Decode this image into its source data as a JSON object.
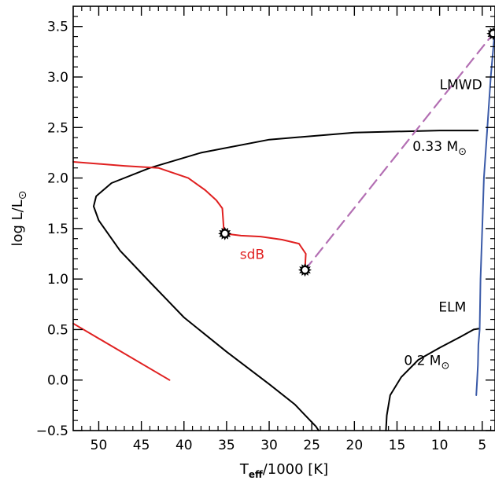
{
  "chart_data": {
    "type": "line",
    "title": "",
    "xlabel": {
      "main": "T",
      "sub": "eff",
      "rest": "/1000 [K]"
    },
    "ylabel": {
      "main": "log L/L",
      "symbol": "⊙"
    },
    "xlim": [
      53,
      3.5
    ],
    "ylim": [
      -0.5,
      3.7
    ],
    "x_reversed": true,
    "grid": false,
    "legend": "none",
    "x_ticks": [
      50,
      45,
      40,
      35,
      30,
      25,
      20,
      15,
      10,
      5
    ],
    "x_tick_labels": [
      "50",
      "45",
      "40",
      "35",
      "30",
      "25",
      "20",
      "15",
      "10",
      "5"
    ],
    "y_ticks": [
      -0.5,
      0.0,
      0.5,
      1.0,
      1.5,
      2.0,
      2.5,
      3.0,
      3.5
    ],
    "y_tick_labels": [
      "−0.5",
      "0.0",
      "0.5",
      "1.0",
      "1.5",
      "2.0",
      "2.5",
      "3.0",
      "3.5"
    ],
    "series": [
      {
        "color": "#000000",
        "style": "solid",
        "points": [
          [
            5.5,
            2.47
          ],
          [
            10,
            2.47
          ],
          [
            20,
            2.45
          ],
          [
            30,
            2.38
          ],
          [
            38,
            2.25
          ],
          [
            44,
            2.1
          ],
          [
            48.5,
            1.95
          ],
          [
            50.3,
            1.82
          ],
          [
            50.6,
            1.72
          ],
          [
            50.0,
            1.58
          ],
          [
            47.5,
            1.28
          ],
          [
            44,
            0.97
          ],
          [
            40,
            0.62
          ],
          [
            35,
            0.28
          ],
          [
            30,
            -0.04
          ],
          [
            27,
            -0.24
          ],
          [
            24.5,
            -0.46
          ],
          [
            24.2,
            -0.5
          ]
        ]
      },
      {
        "color": "#000000",
        "style": "solid",
        "points": [
          [
            5.3,
            0.51
          ],
          [
            6.0,
            0.5
          ],
          [
            7.5,
            0.43
          ],
          [
            10,
            0.32
          ],
          [
            12.5,
            0.2
          ],
          [
            14.5,
            0.03
          ],
          [
            15.8,
            -0.15
          ],
          [
            16.2,
            -0.35
          ],
          [
            16.3,
            -0.5
          ]
        ]
      },
      {
        "color": "#3a5aa8",
        "style": "solid",
        "points": [
          [
            3.6,
            3.38
          ],
          [
            4.0,
            3.0
          ],
          [
            4.4,
            2.5
          ],
          [
            4.8,
            2.0
          ],
          [
            5.0,
            1.5
          ],
          [
            5.2,
            1.0
          ],
          [
            5.3,
            0.5
          ],
          [
            5.45,
            0.35
          ],
          [
            5.5,
            0.15
          ],
          [
            5.6,
            0.0
          ],
          [
            5.7,
            -0.15
          ]
        ]
      },
      {
        "color": "#e02020",
        "style": "solid",
        "points": [
          [
            53,
            2.16
          ],
          [
            47,
            2.12
          ],
          [
            43,
            2.1
          ],
          [
            39.5,
            2.0
          ],
          [
            37.5,
            1.88
          ],
          [
            36.2,
            1.78
          ],
          [
            35.5,
            1.7
          ],
          [
            35.4,
            1.58
          ],
          [
            35.3,
            1.45
          ],
          [
            33.3,
            1.43
          ],
          [
            31,
            1.42
          ],
          [
            28.5,
            1.39
          ],
          [
            26.5,
            1.35
          ],
          [
            25.7,
            1.25
          ],
          [
            25.8,
            1.09
          ]
        ]
      },
      {
        "color": "#e02020",
        "style": "solid",
        "points": [
          [
            53,
            0.56
          ],
          [
            41.7,
            0.0
          ]
        ]
      },
      {
        "color": "#b36fb3",
        "style": "dashed",
        "points": [
          [
            25.8,
            1.09
          ],
          [
            3.7,
            3.43
          ]
        ]
      }
    ],
    "markers": [
      {
        "x": 35.2,
        "y": 1.45
      },
      {
        "x": 25.8,
        "y": 1.09
      },
      {
        "x": 3.7,
        "y": 3.43
      }
    ],
    "annotations": [
      {
        "text": "LMWD",
        "x": 7.5,
        "y": 2.88,
        "color": "#000000"
      },
      {
        "text": "0.33 M",
        "symbol": "⊙",
        "x": 10,
        "y": 2.27,
        "color": "#000000"
      },
      {
        "text": "sdB",
        "x": 32,
        "y": 1.2,
        "color": "#e02020"
      },
      {
        "text": "ELM",
        "x": 8.5,
        "y": 0.68,
        "color": "#000000"
      },
      {
        "text": "0.2 M",
        "symbol": "⊙",
        "x": 11.5,
        "y": 0.15,
        "color": "#000000"
      }
    ]
  }
}
